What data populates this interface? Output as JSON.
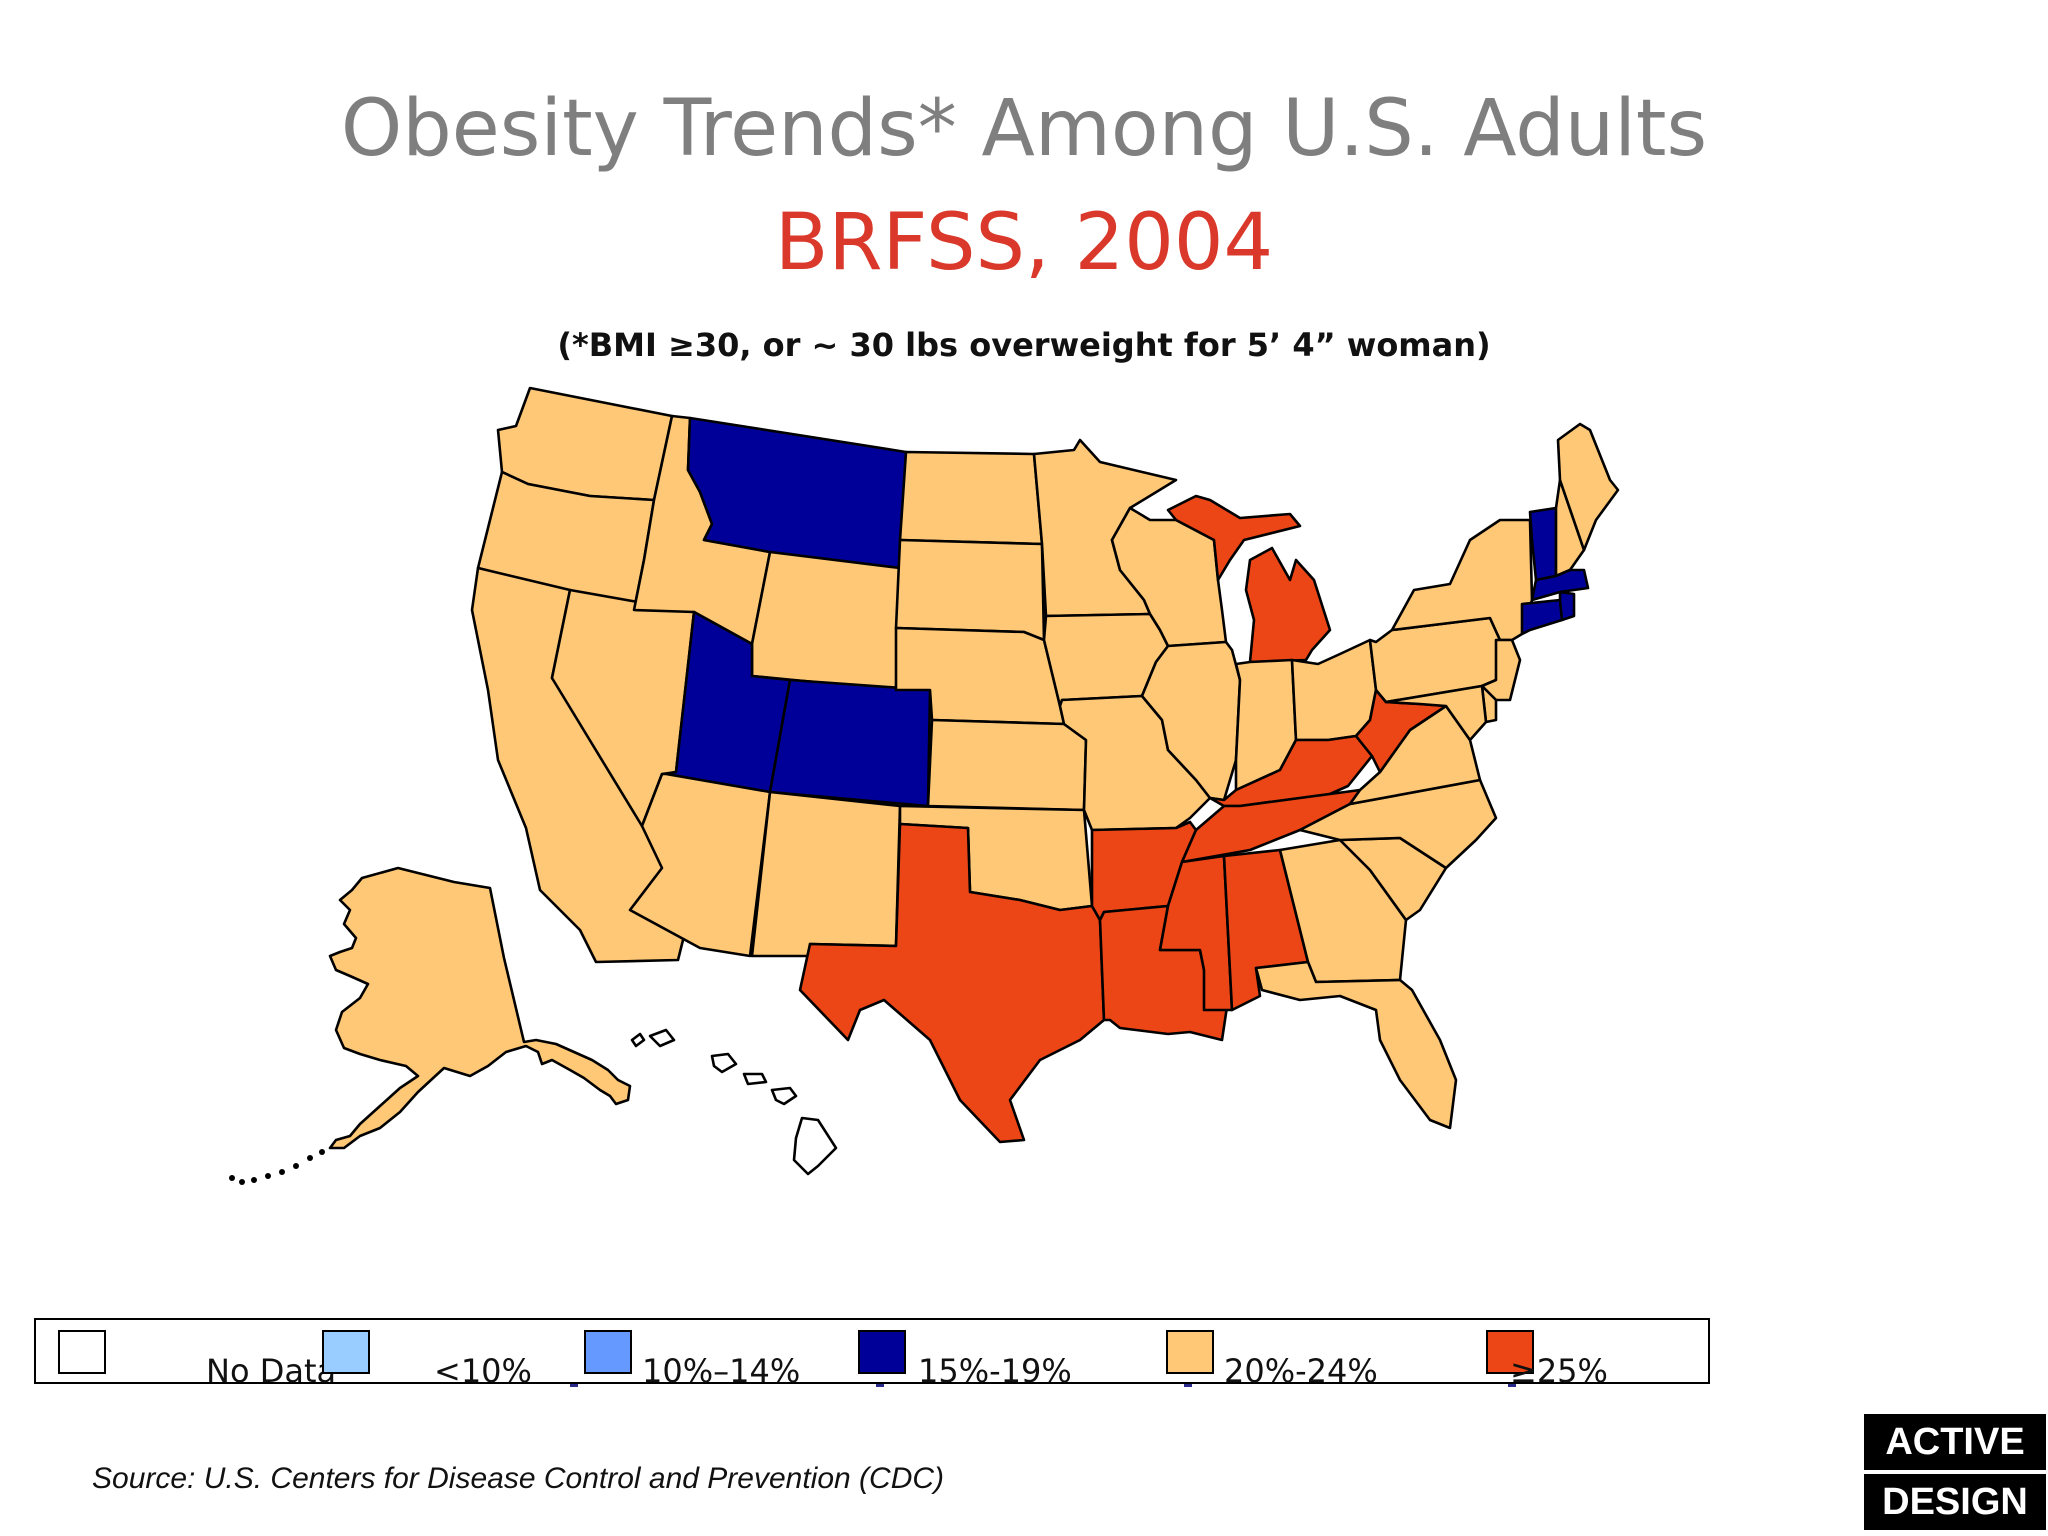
{
  "title": "Obesity Trends* Among U.S. Adults",
  "subtitle": "BRFSS, 2004",
  "note": "(*BMI ≥30, or ~ 30 lbs overweight for 5’ 4” woman)",
  "legend": [
    {
      "label": "No Data",
      "color": "#ffffff"
    },
    {
      "label": "<10%",
      "color": "#99ccff"
    },
    {
      "label": "10%–14%",
      "color": "#6699ff"
    },
    {
      "label": "15%-19%",
      "color": "#000099"
    },
    {
      "label": "20%-24%",
      "color": "#ffc876"
    },
    {
      "label": "≥25%",
      "color": "#ec4516"
    }
  ],
  "states": {
    "WA": "20%-24%",
    "OR": "20%-24%",
    "CA": "20%-24%",
    "NV": "20%-24%",
    "ID": "20%-24%",
    "MT": "15%-19%",
    "WY": "20%-24%",
    "UT": "15%-19%",
    "CO": "15%-19%",
    "AZ": "20%-24%",
    "NM": "20%-24%",
    "ND": "20%-24%",
    "SD": "20%-24%",
    "NE": "20%-24%",
    "KS": "20%-24%",
    "OK": "20%-24%",
    "TX": "≥25%",
    "MN": "20%-24%",
    "IA": "20%-24%",
    "MO": "20%-24%",
    "AR": "≥25%",
    "LA": "≥25%",
    "WI": "20%-24%",
    "IL": "20%-24%",
    "MI": "≥25%",
    "IN": "20%-24%",
    "OH": "20%-24%",
    "KY": "≥25%",
    "TN": "≥25%",
    "MS": "≥25%",
    "AL": "≥25%",
    "GA": "20%-24%",
    "FL": "20%-24%",
    "SC": "20%-24%",
    "NC": "20%-24%",
    "VA": "20%-24%",
    "WV": "≥25%",
    "PA": "20%-24%",
    "NY": "20%-24%",
    "VT": "15%-19%",
    "NH": "20%-24%",
    "ME": "20%-24%",
    "MA": "15%-19%",
    "CT": "15%-19%",
    "RI": "15%-19%",
    "NJ": "20%-24%",
    "DE": "20%-24%",
    "MD": "20%-24%",
    "AK": "20%-24%",
    "HI": "No Data"
  },
  "source": "Source: U.S. Centers for Disease Control and Prevention (CDC)",
  "logo": {
    "line1": "ACTIVE",
    "line2": "DESIGN"
  }
}
